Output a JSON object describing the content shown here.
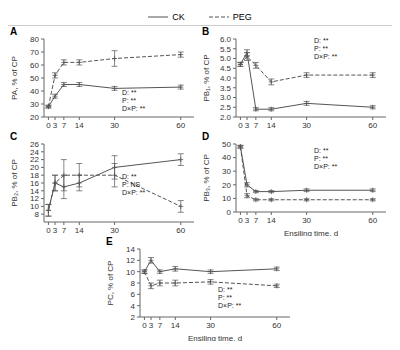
{
  "chart_data": [
    {
      "type": "line",
      "title": "A",
      "y_label": "PA, % of CP",
      "x": [
        0,
        3,
        7,
        14,
        30,
        60
      ],
      "xlim": [
        -2,
        66
      ],
      "xticks": [
        0,
        3,
        7,
        14,
        30,
        60
      ],
      "ylim": [
        20,
        80
      ],
      "yticks": [
        20,
        30,
        40,
        50,
        60,
        70,
        80
      ],
      "legend": "top",
      "annotations": [
        "D: **\nP: **\nD×P: **"
      ],
      "series": [
        {
          "name": "CK",
          "color": "#555555",
          "line_style": "solid",
          "marker": "plus",
          "values": [
            28,
            36,
            45,
            45,
            42,
            43
          ],
          "errors": [
            1.0,
            1.5,
            1.5,
            1.5,
            1.5,
            1.5
          ]
        },
        {
          "name": "PEG",
          "color": "#555555",
          "line_style": "dashed",
          "marker": "plus",
          "values": [
            28,
            52,
            62,
            62,
            65,
            68
          ],
          "errors": [
            1.0,
            2.0,
            2.0,
            2.0,
            6.0,
            2.0
          ]
        }
      ]
    },
    {
      "type": "line",
      "title": "B",
      "y_label": "PB₁, % of CP",
      "x": [
        0,
        3,
        7,
        14,
        30,
        60
      ],
      "xlim": [
        -2,
        66
      ],
      "xticks": [
        0,
        3,
        7,
        14,
        30,
        60
      ],
      "ylim": [
        2.0,
        6.0
      ],
      "yticks": [
        {
          "value": 2,
          "label": "2.0"
        },
        2.5,
        {
          "value": 3,
          "label": "3.0"
        },
        3.5,
        {
          "value": 4,
          "label": "4.0"
        },
        4.5,
        {
          "value": 5,
          "label": "5.0"
        },
        5.5,
        {
          "value": 6,
          "label": "6.0"
        }
      ],
      "annotations": [
        "D: **\nP: **\nD×P: **"
      ],
      "series": [
        {
          "name": "CK",
          "color": "#555555",
          "line_style": "solid",
          "marker": "plus",
          "values": [
            4.7,
            5.3,
            2.4,
            2.4,
            2.7,
            2.5
          ],
          "errors": [
            0.1,
            0.15,
            0.08,
            0.08,
            0.1,
            0.08
          ]
        },
        {
          "name": "PEG",
          "color": "#555555",
          "line_style": "dashed",
          "marker": "plus",
          "values": [
            4.7,
            5.1,
            4.65,
            3.8,
            4.15,
            4.15
          ],
          "errors": [
            0.1,
            0.2,
            0.15,
            0.15,
            0.12,
            0.12
          ]
        }
      ]
    },
    {
      "type": "line",
      "title": "C",
      "y_label": "PB₂, % of CP",
      "x": [
        0,
        3,
        7,
        14,
        30,
        60
      ],
      "xlim": [
        -2,
        66
      ],
      "xticks": [
        0,
        3,
        7,
        14,
        30,
        60
      ],
      "ylim": [
        6,
        26
      ],
      "yticks": [
        8,
        10,
        12,
        14,
        16,
        18,
        20,
        22,
        24,
        26
      ],
      "annotations": [
        "D: **\nP: NS\nD×P: **"
      ],
      "series": [
        {
          "name": "CK",
          "color": "#555555",
          "line_style": "solid",
          "marker": "plus",
          "values": [
            9,
            16,
            15,
            16,
            20,
            22
          ],
          "errors": [
            1.5,
            2.0,
            3.0,
            2.0,
            3.0,
            1.5
          ]
        },
        {
          "name": "PEG",
          "color": "#555555",
          "line_style": "dashed",
          "marker": "plus",
          "values": [
            9,
            16,
            18,
            18,
            18,
            10
          ],
          "errors": [
            1.5,
            2.0,
            4.0,
            3.0,
            3.0,
            1.5
          ]
        }
      ]
    },
    {
      "type": "line",
      "title": "D",
      "y_label": "PB₃, % of CP",
      "x_label": "Ensiling time, d",
      "x": [
        0,
        3,
        7,
        14,
        30,
        60
      ],
      "xlim": [
        -2,
        66
      ],
      "xticks": [
        0,
        3,
        7,
        14,
        30,
        60
      ],
      "ylim": [
        0,
        50
      ],
      "yticks": [
        0,
        10,
        20,
        30,
        40,
        50
      ],
      "annotations": [
        "D: **\nP: **\nD×P: **"
      ],
      "series": [
        {
          "name": "CK",
          "color": "#555555",
          "line_style": "solid",
          "marker": "plus",
          "values": [
            48,
            20,
            15,
            15,
            16,
            16
          ],
          "errors": [
            1.0,
            1.5,
            0.8,
            0.8,
            1.0,
            1.0
          ]
        },
        {
          "name": "PEG",
          "color": "#555555",
          "line_style": "dashed",
          "marker": "plus",
          "values": [
            48,
            12,
            9,
            9,
            9,
            9
          ],
          "errors": [
            1.0,
            1.5,
            0.8,
            0.8,
            0.8,
            0.8
          ]
        }
      ]
    },
    {
      "type": "line",
      "title": "E",
      "y_label": "PC, % of CP",
      "x_label": "Ensiling time, d",
      "x": [
        0,
        3,
        7,
        14,
        30,
        60
      ],
      "xlim": [
        -2,
        66
      ],
      "xticks": [
        0,
        3,
        7,
        14,
        30,
        60
      ],
      "ylim": [
        2,
        14
      ],
      "yticks": [
        2,
        4,
        6,
        8,
        10,
        12,
        14
      ],
      "annotations": [
        "D: **\nP: **\nD×P: **"
      ],
      "series": [
        {
          "name": "CK",
          "color": "#555555",
          "line_style": "solid",
          "marker": "plus",
          "values": [
            10.0,
            12.0,
            10.0,
            10.5,
            10.0,
            10.5
          ],
          "errors": [
            0.3,
            0.5,
            0.3,
            0.4,
            0.3,
            0.3
          ]
        },
        {
          "name": "PEG",
          "color": "#555555",
          "line_style": "dashed",
          "marker": "plus",
          "values": [
            10.0,
            7.5,
            8.0,
            8.0,
            8.2,
            7.5
          ],
          "errors": [
            0.3,
            0.5,
            0.5,
            0.5,
            0.4,
            0.3
          ]
        }
      ]
    }
  ]
}
